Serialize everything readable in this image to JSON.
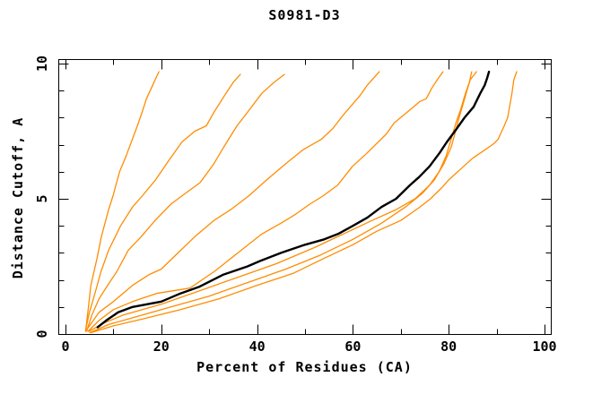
{
  "title": "S0981-D3",
  "colors": {
    "background": "#ffffff",
    "frame": "#000000",
    "text": "#000000",
    "model_curve": "#ff8c00",
    "highlight_curve": "#000000"
  },
  "axes": {
    "x": {
      "label": "Percent of Residues (CA)",
      "range": [
        0,
        100
      ],
      "tick_step": 10,
      "labeled_ticks": [
        0,
        20,
        40,
        60,
        80,
        100
      ],
      "tick_labels": [
        "0",
        "20",
        "40",
        "60",
        "80",
        "100"
      ]
    },
    "y": {
      "label": "Distance Cutoff, A",
      "range": [
        0,
        10
      ],
      "tick_step": 1,
      "labeled_ticks": [
        0,
        5,
        10
      ],
      "tick_labels": [
        "0",
        "5",
        "10"
      ]
    }
  },
  "chart_data": {
    "type": "line",
    "title": "S0981-D3",
    "xlabel": "Percent of Residues (CA)",
    "ylabel": "Distance Cutoff, A",
    "xlim": [
      0,
      100
    ],
    "ylim": [
      0,
      10
    ],
    "grid": false,
    "legend": "none",
    "tick_style": "inward-all-sides",
    "series": [
      {
        "name": "orange-curve-1",
        "color": "#ff8c00",
        "width": 1.3,
        "points": [
          [
            4.2,
            0.1
          ],
          [
            4.8,
            1.0
          ],
          [
            5.3,
            1.8
          ],
          [
            6.6,
            2.8
          ],
          [
            7.5,
            3.6
          ],
          [
            9.0,
            4.6
          ],
          [
            9.9,
            5.1
          ],
          [
            11.3,
            6.0
          ],
          [
            12.7,
            6.6
          ],
          [
            15.0,
            7.7
          ],
          [
            16.0,
            8.2
          ],
          [
            16.9,
            8.7
          ],
          [
            18.2,
            9.2
          ],
          [
            19.5,
            9.7
          ]
        ]
      },
      {
        "name": "orange-curve-2",
        "color": "#ff8c00",
        "width": 1.3,
        "points": [
          [
            4.2,
            0.15
          ],
          [
            5.0,
            0.8
          ],
          [
            6.0,
            1.4
          ],
          [
            7.4,
            2.3
          ],
          [
            9.0,
            3.1
          ],
          [
            11.5,
            4.0
          ],
          [
            14.0,
            4.7
          ],
          [
            16.0,
            5.1
          ],
          [
            18.8,
            5.7
          ],
          [
            21.5,
            6.4
          ],
          [
            24.3,
            7.1
          ],
          [
            27.0,
            7.5
          ],
          [
            29.4,
            7.7
          ],
          [
            31.0,
            8.2
          ],
          [
            33.5,
            8.9
          ],
          [
            35.0,
            9.3
          ],
          [
            36.5,
            9.6
          ]
        ]
      },
      {
        "name": "orange-curve-3",
        "color": "#ff8c00",
        "width": 1.3,
        "points": [
          [
            4.4,
            0.1
          ],
          [
            5.5,
            0.7
          ],
          [
            7.0,
            1.3
          ],
          [
            8.8,
            1.8
          ],
          [
            10.7,
            2.3
          ],
          [
            13.1,
            3.1
          ],
          [
            15.8,
            3.6
          ],
          [
            18.7,
            4.2
          ],
          [
            22.0,
            4.8
          ],
          [
            25.0,
            5.2
          ],
          [
            28.1,
            5.6
          ],
          [
            31.0,
            6.3
          ],
          [
            33.0,
            6.9
          ],
          [
            35.8,
            7.7
          ],
          [
            38.0,
            8.2
          ],
          [
            41.0,
            8.9
          ],
          [
            43.5,
            9.3
          ],
          [
            45.7,
            9.6
          ]
        ]
      },
      {
        "name": "orange-curve-4",
        "color": "#ff8c00",
        "width": 1.3,
        "points": [
          [
            4.4,
            0.15
          ],
          [
            7.0,
            0.8
          ],
          [
            10.0,
            1.2
          ],
          [
            14.0,
            1.8
          ],
          [
            17.5,
            2.2
          ],
          [
            20.0,
            2.4
          ],
          [
            23.5,
            3.0
          ],
          [
            27.0,
            3.6
          ],
          [
            31.0,
            4.2
          ],
          [
            34.5,
            4.6
          ],
          [
            38.2,
            5.1
          ],
          [
            42.0,
            5.7
          ],
          [
            46.0,
            6.3
          ],
          [
            49.5,
            6.8
          ],
          [
            53.4,
            7.2
          ],
          [
            55.8,
            7.6
          ],
          [
            58.0,
            8.1
          ],
          [
            61.4,
            8.8
          ],
          [
            63.0,
            9.2
          ],
          [
            65.5,
            9.7
          ]
        ]
      },
      {
        "name": "orange-curve-5",
        "color": "#ff8c00",
        "width": 1.3,
        "points": [
          [
            4.7,
            0.1
          ],
          [
            7.0,
            0.5
          ],
          [
            10.0,
            0.9
          ],
          [
            14.0,
            1.2
          ],
          [
            19.0,
            1.5
          ],
          [
            26.0,
            1.7
          ],
          [
            31.0,
            2.3
          ],
          [
            36.0,
            3.0
          ],
          [
            41.0,
            3.7
          ],
          [
            45.0,
            4.1
          ],
          [
            47.8,
            4.4
          ],
          [
            51.0,
            4.8
          ],
          [
            53.7,
            5.1
          ],
          [
            56.8,
            5.5
          ],
          [
            59.9,
            6.2
          ],
          [
            63.0,
            6.7
          ],
          [
            67.0,
            7.4
          ],
          [
            68.6,
            7.8
          ],
          [
            72.0,
            8.3
          ],
          [
            74.0,
            8.6
          ],
          [
            75.3,
            8.7
          ],
          [
            76.5,
            9.1
          ],
          [
            77.6,
            9.4
          ],
          [
            78.8,
            9.7
          ]
        ]
      },
      {
        "name": "orange-curve-6",
        "color": "#ff8c00",
        "width": 1.3,
        "points": [
          [
            4.9,
            0.1
          ],
          [
            8.0,
            0.4
          ],
          [
            12.0,
            0.7
          ],
          [
            20.0,
            1.1
          ],
          [
            28.0,
            1.6
          ],
          [
            36.0,
            2.1
          ],
          [
            44.0,
            2.6
          ],
          [
            52.0,
            3.2
          ],
          [
            58.0,
            3.7
          ],
          [
            64.0,
            4.2
          ],
          [
            69.0,
            4.6
          ],
          [
            73.0,
            5.0
          ],
          [
            76.0,
            5.5
          ],
          [
            78.0,
            6.0
          ],
          [
            79.5,
            6.6
          ],
          [
            80.5,
            7.2
          ],
          [
            81.5,
            7.8
          ],
          [
            82.5,
            8.3
          ],
          [
            83.5,
            8.9
          ],
          [
            84.3,
            9.3
          ],
          [
            84.8,
            9.7
          ]
        ]
      },
      {
        "name": "orange-curve-7",
        "color": "#ff8c00",
        "width": 1.3,
        "points": [
          [
            5.1,
            0.05
          ],
          [
            9.0,
            0.35
          ],
          [
            14.0,
            0.6
          ],
          [
            22.0,
            1.0
          ],
          [
            30.0,
            1.4
          ],
          [
            38.0,
            1.9
          ],
          [
            46.0,
            2.4
          ],
          [
            53.0,
            2.9
          ],
          [
            60.0,
            3.5
          ],
          [
            66.0,
            4.1
          ],
          [
            71.0,
            4.7
          ],
          [
            74.5,
            5.2
          ],
          [
            77.0,
            5.7
          ],
          [
            79.0,
            6.3
          ],
          [
            80.5,
            6.9
          ],
          [
            81.3,
            7.4
          ],
          [
            82.0,
            7.9
          ],
          [
            83.0,
            8.5
          ],
          [
            83.8,
            9.0
          ],
          [
            84.5,
            9.4
          ],
          [
            85.8,
            9.7
          ]
        ]
      },
      {
        "name": "orange-curve-8",
        "color": "#ff8c00",
        "width": 1.3,
        "points": [
          [
            5.3,
            0.05
          ],
          [
            10.0,
            0.3
          ],
          [
            16.0,
            0.55
          ],
          [
            24.0,
            0.9
          ],
          [
            32.0,
            1.3
          ],
          [
            40.0,
            1.8
          ],
          [
            47.6,
            2.25
          ],
          [
            54.0,
            2.8
          ],
          [
            60.0,
            3.3
          ],
          [
            65.0,
            3.8
          ],
          [
            70.0,
            4.2
          ],
          [
            74.0,
            4.7
          ],
          [
            76.2,
            5.0
          ],
          [
            78.5,
            5.4
          ],
          [
            80.0,
            5.7
          ],
          [
            82.5,
            6.1
          ],
          [
            85.0,
            6.5
          ],
          [
            87.5,
            6.8
          ],
          [
            89.5,
            7.05
          ],
          [
            90.3,
            7.2
          ],
          [
            91.6,
            7.7
          ],
          [
            92.3,
            8.0
          ],
          [
            92.7,
            8.4
          ],
          [
            93.2,
            8.9
          ],
          [
            93.6,
            9.4
          ],
          [
            94.2,
            9.7
          ]
        ]
      },
      {
        "name": "black-curve",
        "color": "#000000",
        "width": 2.4,
        "points": [
          [
            6.7,
            0.25
          ],
          [
            8.5,
            0.5
          ],
          [
            11.0,
            0.8
          ],
          [
            14.0,
            1.0
          ],
          [
            17.0,
            1.1
          ],
          [
            20.0,
            1.2
          ],
          [
            24.0,
            1.5
          ],
          [
            28.0,
            1.75
          ],
          [
            33.0,
            2.2
          ],
          [
            38.0,
            2.5
          ],
          [
            40.6,
            2.7
          ],
          [
            45.0,
            3.0
          ],
          [
            50.0,
            3.3
          ],
          [
            54.0,
            3.5
          ],
          [
            56.9,
            3.7
          ],
          [
            60.0,
            4.0
          ],
          [
            63.0,
            4.3
          ],
          [
            66.0,
            4.7
          ],
          [
            69.0,
            5.0
          ],
          [
            71.9,
            5.5
          ],
          [
            73.8,
            5.8
          ],
          [
            76.0,
            6.2
          ],
          [
            78.1,
            6.7
          ],
          [
            79.6,
            7.1
          ],
          [
            81.3,
            7.5
          ],
          [
            83.3,
            8.0
          ],
          [
            85.2,
            8.4
          ],
          [
            86.6,
            8.9
          ],
          [
            87.5,
            9.2
          ],
          [
            88.0,
            9.45
          ],
          [
            88.4,
            9.7
          ]
        ]
      }
    ]
  }
}
